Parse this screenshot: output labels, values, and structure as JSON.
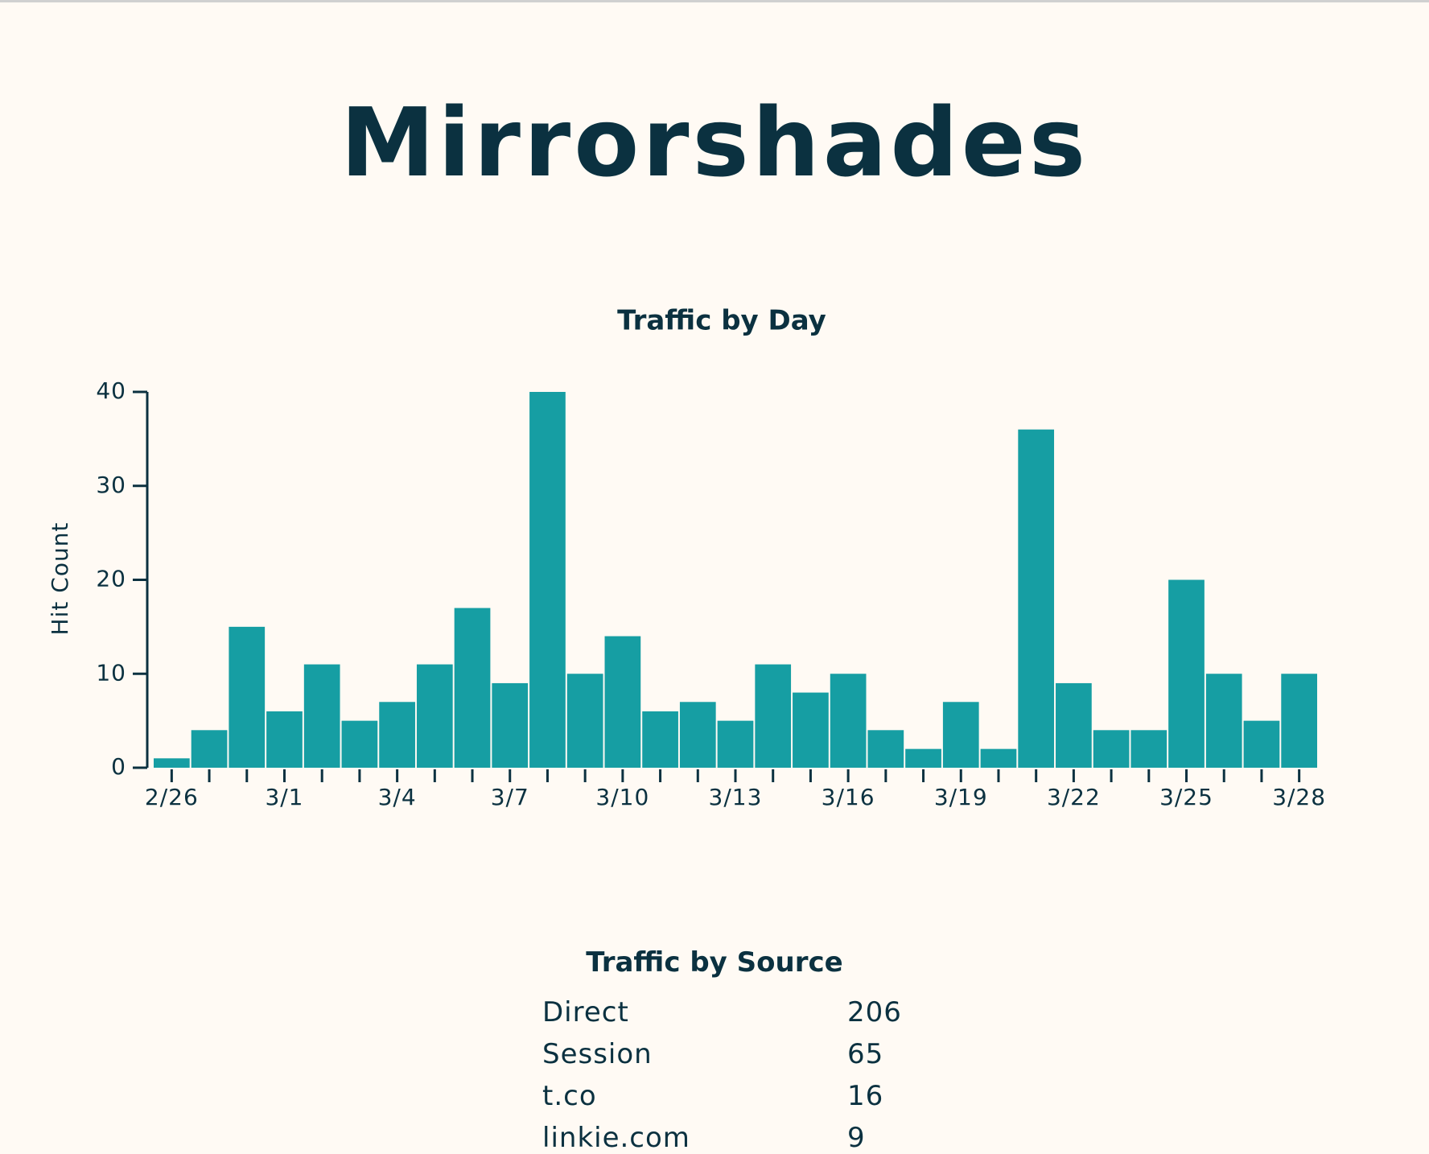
{
  "header": {
    "title": "Mirrorshades"
  },
  "chart_data": {
    "type": "bar",
    "title": "Traffic by Day",
    "y_label": "Hit Count",
    "categories": [
      "2/26",
      null,
      null,
      "3/1",
      null,
      null,
      "3/4",
      null,
      null,
      "3/7",
      null,
      null,
      "3/10",
      null,
      null,
      "3/13",
      null,
      null,
      "3/16",
      null,
      null,
      "3/19",
      null,
      null,
      "3/22",
      null,
      null,
      "3/25",
      null,
      null,
      "3/28"
    ],
    "values": [
      1,
      4,
      15,
      6,
      11,
      5,
      7,
      11,
      17,
      9,
      40,
      10,
      14,
      6,
      7,
      5,
      11,
      8,
      10,
      4,
      2,
      7,
      2,
      36,
      9,
      4,
      4,
      20,
      10,
      5,
      10
    ],
    "color": "#169ea3",
    "ylim": [
      0,
      40
    ],
    "yticks": [
      0,
      10,
      20,
      30,
      40
    ]
  },
  "table": {
    "title": "Traffic by Source",
    "rows": [
      [
        "Direct",
        "206"
      ],
      [
        "Session",
        "65"
      ],
      [
        "t.co",
        "16"
      ],
      [
        "linkie.com",
        "9"
      ]
    ]
  }
}
